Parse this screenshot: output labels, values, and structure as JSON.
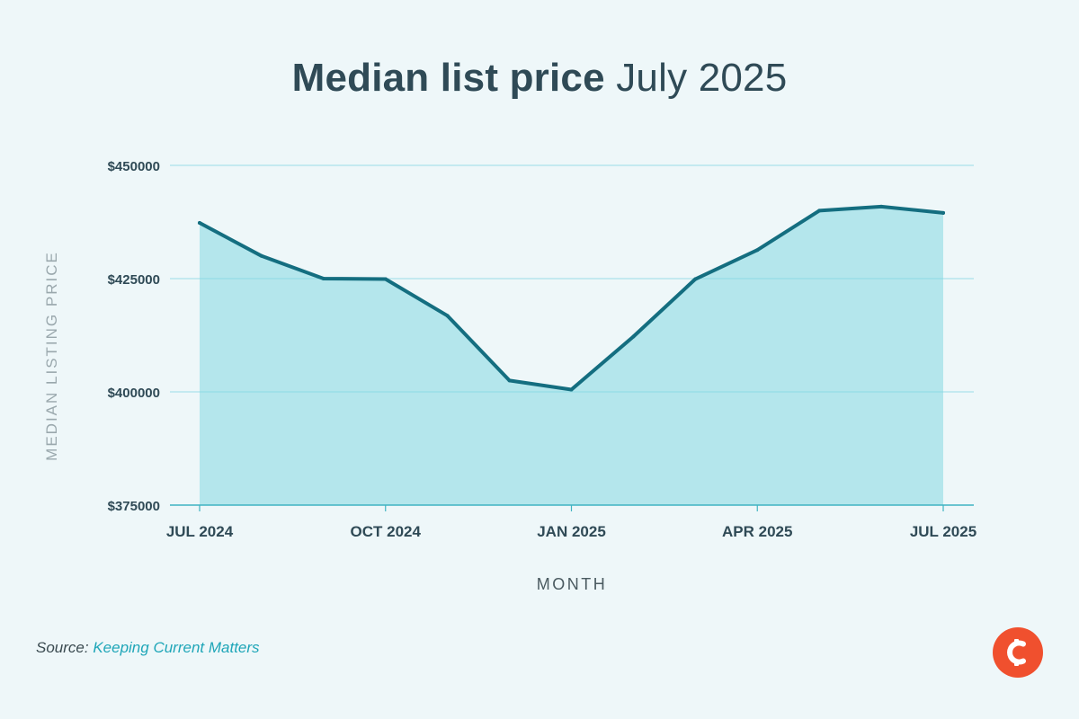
{
  "title": {
    "bold": "Median list price",
    "light": "July 2025"
  },
  "source": {
    "label": "Source:",
    "name": "Keeping Current Matters"
  },
  "logo": {
    "icon": "kcm-c-logo-icon",
    "color": "#f0502e"
  },
  "colors": {
    "line": "#146e80",
    "area": "#b4e6ec",
    "grid": "#7fd6e0",
    "text": "#2f4a56"
  },
  "chart_data": {
    "type": "area",
    "title": "Median list price July 2025",
    "xlabel": "MONTH",
    "ylabel": "MEDIAN LISTING PRICE",
    "x": [
      "2024-07",
      "2024-08",
      "2024-09",
      "2024-10",
      "2024-11",
      "2024-12",
      "2025-01",
      "2025-02",
      "2025-03",
      "2025-04",
      "2025-05",
      "2025-06",
      "2025-07"
    ],
    "series": [
      {
        "values": [
          437300,
          430000,
          425000,
          424900,
          416800,
          402500,
          400500,
          412200,
          424900,
          431300,
          440000,
          440900,
          439500
        ]
      }
    ],
    "ylim": [
      375000,
      450000
    ],
    "yticks": [
      375000,
      400000,
      425000,
      450000
    ],
    "ytick_labels": [
      "$375000",
      "$400000",
      "$425000",
      "$450000"
    ],
    "xtick_positions": [
      "2024-07",
      "2024-10",
      "2025-01",
      "2025-04",
      "2025-07"
    ],
    "xtick_labels": [
      "JUL 2024",
      "OCT 2024",
      "JAN 2025",
      "APR 2025",
      "JUL 2025"
    ],
    "grid": true,
    "legend": "none"
  }
}
